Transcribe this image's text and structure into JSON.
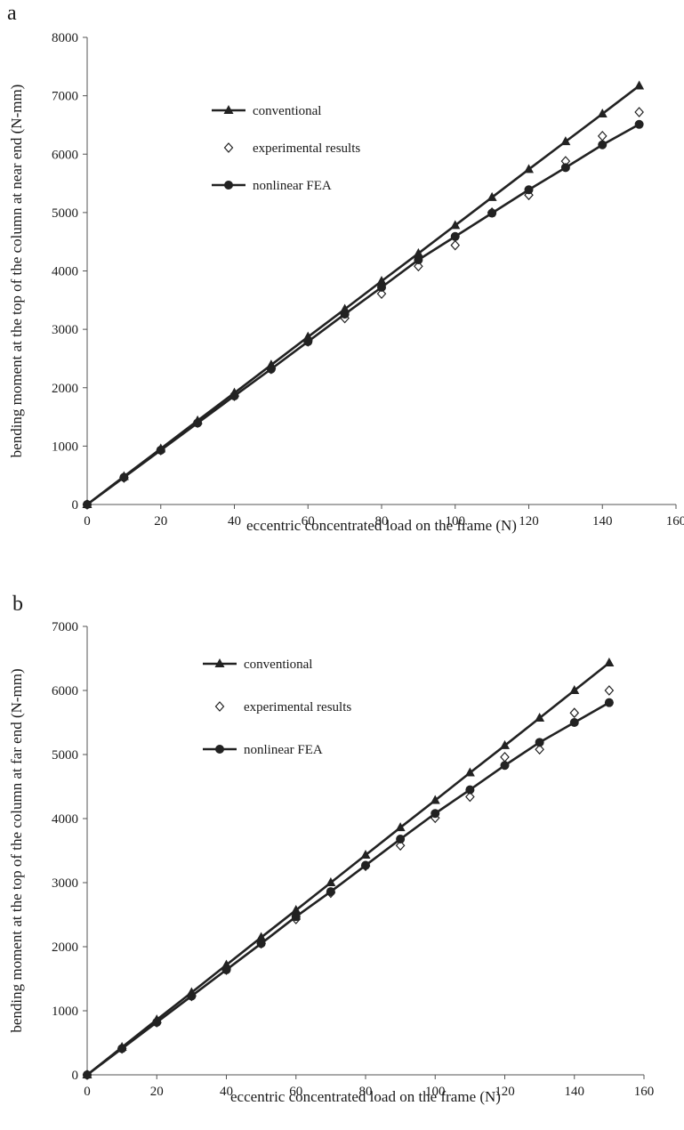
{
  "chart_data": [
    {
      "panel_label": "a",
      "type": "line",
      "xlabel": "eccentric concentrated load on the frame (N)",
      "ylabel": "bending moment at the top of the column at near end (N-mm)",
      "xlim": [
        0,
        160
      ],
      "ylim": [
        0,
        8000
      ],
      "xticks": [
        "0",
        "20",
        "40",
        "60",
        "80",
        "100",
        "120",
        "140",
        "160"
      ],
      "yticks": [
        "0",
        "1000",
        "2000",
        "3000",
        "4000",
        "5000",
        "6000",
        "7000",
        "8000"
      ],
      "grid": false,
      "legend_position": "upper-left",
      "series": [
        {
          "name": "conventional",
          "marker": "triangle",
          "line": true,
          "color": "#222222",
          "x": [
            0,
            10,
            20,
            30,
            40,
            50,
            60,
            70,
            80,
            90,
            100,
            110,
            120,
            130,
            140,
            150
          ],
          "y": [
            0,
            480,
            955,
            1435,
            1910,
            2390,
            2870,
            3345,
            3825,
            4300,
            4780,
            5260,
            5740,
            6215,
            6690,
            7170
          ]
        },
        {
          "name": "experimental results",
          "marker": "diamond-open",
          "line": false,
          "color": "#222222",
          "x": [
            0,
            10,
            20,
            30,
            40,
            50,
            60,
            70,
            80,
            90,
            100,
            110,
            120,
            130,
            140,
            150
          ],
          "y": [
            0,
            460,
            930,
            1400,
            1860,
            2320,
            2790,
            3190,
            3610,
            4080,
            4440,
            5000,
            5300,
            5880,
            6310,
            6720
          ]
        },
        {
          "name": "nonlinear FEA",
          "marker": "circle",
          "line": true,
          "color": "#222222",
          "x": [
            0,
            10,
            20,
            30,
            40,
            50,
            60,
            70,
            80,
            90,
            100,
            110,
            120,
            130,
            140,
            150
          ],
          "y": [
            0,
            465,
            930,
            1395,
            1860,
            2320,
            2790,
            3260,
            3720,
            4190,
            4590,
            4990,
            5390,
            5770,
            6160,
            6510
          ]
        }
      ]
    },
    {
      "panel_label": "b",
      "type": "line",
      "xlabel": "eccentric concentrated load on the frame (N)",
      "ylabel": "bending moment at the top of the column at far end (N-mm)",
      "xlim": [
        0,
        160
      ],
      "ylim": [
        0,
        7000
      ],
      "xticks": [
        "0",
        "20",
        "40",
        "60",
        "80",
        "100",
        "120",
        "140",
        "160"
      ],
      "yticks": [
        "0",
        "1000",
        "2000",
        "3000",
        "4000",
        "5000",
        "6000",
        "7000"
      ],
      "grid": false,
      "legend_position": "upper-left",
      "series": [
        {
          "name": "conventional",
          "marker": "triangle",
          "line": true,
          "color": "#222222",
          "x": [
            0,
            10,
            20,
            30,
            40,
            50,
            60,
            70,
            80,
            90,
            100,
            110,
            120,
            130,
            140,
            150
          ],
          "y": [
            0,
            430,
            860,
            1285,
            1715,
            2145,
            2570,
            3000,
            3430,
            3860,
            4285,
            4715,
            5140,
            5570,
            6000,
            6430
          ]
        },
        {
          "name": "experimental results",
          "marker": "diamond-open",
          "line": false,
          "color": "#222222",
          "x": [
            0,
            10,
            20,
            30,
            40,
            50,
            60,
            70,
            80,
            90,
            100,
            110,
            120,
            130,
            140,
            150
          ],
          "y": [
            0,
            410,
            820,
            1230,
            1640,
            2050,
            2430,
            2840,
            3260,
            3580,
            4010,
            4340,
            4960,
            5080,
            5650,
            6000
          ]
        },
        {
          "name": "nonlinear FEA",
          "marker": "circle",
          "line": true,
          "color": "#222222",
          "x": [
            0,
            10,
            20,
            30,
            40,
            50,
            60,
            70,
            80,
            90,
            100,
            110,
            120,
            130,
            140,
            150
          ],
          "y": [
            0,
            410,
            820,
            1230,
            1640,
            2050,
            2470,
            2860,
            3270,
            3680,
            4080,
            4450,
            4830,
            5190,
            5500,
            5810
          ]
        }
      ]
    }
  ]
}
